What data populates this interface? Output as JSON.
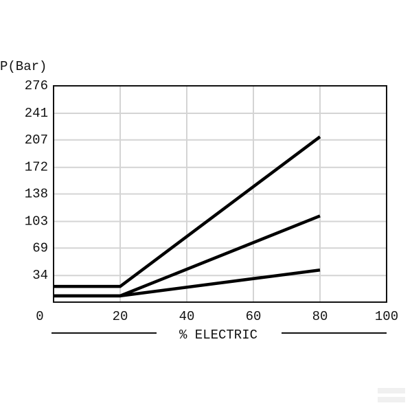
{
  "chart_data": {
    "type": "line",
    "y_label": "P(Bar)",
    "x_label": "% ELECTRIC",
    "xlim": [
      0,
      100
    ],
    "xticks": [
      0,
      20,
      40,
      60,
      80,
      100
    ],
    "ylim": [
      0,
      276
    ],
    "yticks": [
      34,
      69,
      103,
      138,
      172,
      207,
      241,
      276
    ],
    "grid": true,
    "series": [
      {
        "color": "#000000",
        "x": [
          0,
          20,
          80
        ],
        "values": [
          20,
          20,
          211
        ]
      },
      {
        "color": "#000000",
        "x": [
          0,
          20,
          80
        ],
        "values": [
          8,
          8,
          110
        ]
      },
      {
        "color": "#000000",
        "x": [
          0,
          20,
          80
        ],
        "values": [
          8,
          8,
          41
        ]
      }
    ]
  }
}
